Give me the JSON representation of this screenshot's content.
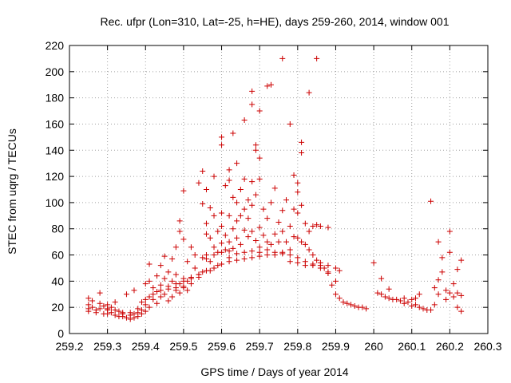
{
  "chart_data": {
    "type": "scatter",
    "title": "Rec. ufpr (Lon=310, Lat=-25, h=HE), days 259-260, 2014, window 001",
    "xlabel": "GPS time / Days of year 2014",
    "ylabel": "STEC from uqrg / TECUs",
    "xlim": [
      259.2,
      260.3
    ],
    "ylim": [
      0,
      220
    ],
    "x_ticks": [
      259.2,
      259.3,
      259.4,
      259.5,
      259.6,
      259.7,
      259.8,
      259.9,
      260,
      260.1,
      260.2,
      260.3
    ],
    "x_tick_labels": [
      "259.2",
      "259.3",
      "259.4",
      "259.5",
      "259.6",
      "259.7",
      "259.8",
      "259.9",
      "260",
      "260.1",
      "260.2",
      "260.3"
    ],
    "y_ticks": [
      0,
      20,
      40,
      60,
      80,
      100,
      120,
      140,
      160,
      180,
      200,
      220
    ],
    "y_tick_labels": [
      "0",
      "20",
      "40",
      "60",
      "80",
      "100",
      "120",
      "140",
      "160",
      "180",
      "200",
      "220"
    ],
    "grid": true,
    "marker": "+",
    "color": "#cc0000",
    "points": [
      [
        259.25,
        27
      ],
      [
        259.25,
        22
      ],
      [
        259.25,
        19
      ],
      [
        259.25,
        17
      ],
      [
        259.26,
        25
      ],
      [
        259.26,
        20
      ],
      [
        259.27,
        18
      ],
      [
        259.27,
        16
      ],
      [
        259.28,
        31
      ],
      [
        259.28,
        23
      ],
      [
        259.28,
        19
      ],
      [
        259.29,
        15
      ],
      [
        259.29,
        21
      ],
      [
        259.3,
        22
      ],
      [
        259.3,
        18
      ],
      [
        259.3,
        15
      ],
      [
        259.31,
        20
      ],
      [
        259.31,
        16
      ],
      [
        259.32,
        24
      ],
      [
        259.32,
        14
      ],
      [
        259.33,
        17
      ],
      [
        259.33,
        13
      ],
      [
        259.34,
        15
      ],
      [
        259.34,
        13
      ],
      [
        259.35,
        30
      ],
      [
        259.35,
        12
      ],
      [
        259.36,
        14
      ],
      [
        259.36,
        11
      ],
      [
        259.37,
        33
      ],
      [
        259.37,
        15
      ],
      [
        259.37,
        12
      ],
      [
        259.38,
        19
      ],
      [
        259.38,
        13
      ],
      [
        259.39,
        24
      ],
      [
        259.39,
        15
      ],
      [
        259.39,
        18
      ],
      [
        259.4,
        38
      ],
      [
        259.4,
        22
      ],
      [
        259.4,
        17
      ],
      [
        259.41,
        53
      ],
      [
        259.41,
        40
      ],
      [
        259.41,
        28
      ],
      [
        259.41,
        20
      ],
      [
        259.42,
        35
      ],
      [
        259.42,
        26
      ],
      [
        259.43,
        44
      ],
      [
        259.43,
        32
      ],
      [
        259.43,
        23
      ],
      [
        259.44,
        52
      ],
      [
        259.44,
        37
      ],
      [
        259.44,
        28
      ],
      [
        259.45,
        59
      ],
      [
        259.45,
        42
      ],
      [
        259.45,
        30
      ],
      [
        259.46,
        47
      ],
      [
        259.46,
        34
      ],
      [
        259.46,
        25
      ],
      [
        259.47,
        57
      ],
      [
        259.47,
        40
      ],
      [
        259.47,
        28
      ],
      [
        259.48,
        66
      ],
      [
        259.48,
        45
      ],
      [
        259.48,
        35
      ],
      [
        259.49,
        78
      ],
      [
        259.49,
        86
      ],
      [
        259.49,
        38
      ],
      [
        259.49,
        31
      ],
      [
        259.5,
        109
      ],
      [
        259.5,
        72
      ],
      [
        259.5,
        42
      ],
      [
        259.5,
        36
      ],
      [
        259.51,
        55
      ],
      [
        259.51,
        40
      ],
      [
        259.51,
        33
      ],
      [
        259.52,
        66
      ],
      [
        259.52,
        43
      ],
      [
        259.53,
        60
      ],
      [
        259.53,
        50
      ],
      [
        259.54,
        115
      ],
      [
        259.54,
        45
      ],
      [
        259.55,
        124
      ],
      [
        259.55,
        99
      ],
      [
        259.55,
        58
      ],
      [
        259.55,
        47
      ],
      [
        259.56,
        110
      ],
      [
        259.56,
        84
      ],
      [
        259.56,
        76
      ],
      [
        259.56,
        60
      ],
      [
        259.57,
        96
      ],
      [
        259.57,
        73
      ],
      [
        259.57,
        55
      ],
      [
        259.57,
        48
      ],
      [
        259.58,
        120
      ],
      [
        259.58,
        90
      ],
      [
        259.58,
        66
      ],
      [
        259.59,
        78
      ],
      [
        259.59,
        62
      ],
      [
        259.59,
        52
      ],
      [
        259.6,
        150
      ],
      [
        259.6,
        144
      ],
      [
        259.6,
        92
      ],
      [
        259.6,
        82
      ],
      [
        259.6,
        69
      ],
      [
        259.61,
        113
      ],
      [
        259.61,
        75
      ],
      [
        259.61,
        64
      ],
      [
        259.62,
        125
      ],
      [
        259.62,
        117
      ],
      [
        259.62,
        90
      ],
      [
        259.62,
        70
      ],
      [
        259.62,
        58
      ],
      [
        259.63,
        153
      ],
      [
        259.63,
        104
      ],
      [
        259.63,
        80
      ],
      [
        259.63,
        65
      ],
      [
        259.64,
        130
      ],
      [
        259.64,
        100
      ],
      [
        259.64,
        86
      ],
      [
        259.64,
        73
      ],
      [
        259.65,
        110
      ],
      [
        259.65,
        90
      ],
      [
        259.65,
        68
      ],
      [
        259.66,
        163
      ],
      [
        259.66,
        118
      ],
      [
        259.66,
        95
      ],
      [
        259.66,
        79
      ],
      [
        259.67,
        102
      ],
      [
        259.67,
        88
      ],
      [
        259.67,
        74
      ],
      [
        259.68,
        185
      ],
      [
        259.68,
        175
      ],
      [
        259.68,
        116
      ],
      [
        259.68,
        98
      ],
      [
        259.68,
        78
      ],
      [
        259.69,
        144
      ],
      [
        259.69,
        140
      ],
      [
        259.69,
        106
      ],
      [
        259.69,
        71
      ],
      [
        259.7,
        170
      ],
      [
        259.7,
        134
      ],
      [
        259.7,
        118
      ],
      [
        259.7,
        81
      ],
      [
        259.7,
        66
      ],
      [
        259.71,
        95
      ],
      [
        259.71,
        75
      ],
      [
        259.72,
        189
      ],
      [
        259.72,
        88
      ],
      [
        259.72,
        70
      ],
      [
        259.73,
        190
      ],
      [
        259.73,
        100
      ],
      [
        259.73,
        68
      ],
      [
        259.74,
        111
      ],
      [
        259.74,
        76
      ],
      [
        259.75,
        85
      ],
      [
        259.75,
        70
      ],
      [
        259.76,
        210
      ],
      [
        259.76,
        94
      ],
      [
        259.76,
        78
      ],
      [
        259.77,
        102
      ],
      [
        259.77,
        70
      ],
      [
        259.78,
        160
      ],
      [
        259.78,
        82
      ],
      [
        259.78,
        64
      ],
      [
        259.79,
        121
      ],
      [
        259.79,
        95
      ],
      [
        259.79,
        74
      ],
      [
        259.8,
        115
      ],
      [
        259.8,
        108
      ],
      [
        259.8,
        92
      ],
      [
        259.8,
        73
      ],
      [
        259.81,
        146
      ],
      [
        259.81,
        138
      ],
      [
        259.81,
        98
      ],
      [
        259.81,
        70
      ],
      [
        259.82,
        84
      ],
      [
        259.82,
        68
      ],
      [
        259.83,
        184
      ],
      [
        259.83,
        78
      ],
      [
        259.83,
        64
      ],
      [
        259.84,
        82
      ],
      [
        259.84,
        60
      ],
      [
        259.85,
        210
      ],
      [
        259.85,
        83
      ],
      [
        259.85,
        56
      ],
      [
        259.86,
        82
      ],
      [
        259.86,
        52
      ],
      [
        259.87,
        50
      ],
      [
        259.88,
        81
      ],
      [
        259.88,
        47
      ],
      [
        259.89,
        37
      ],
      [
        259.9,
        50
      ],
      [
        259.9,
        30
      ],
      [
        259.91,
        48
      ],
      [
        259.91,
        27
      ],
      [
        259.92,
        24
      ],
      [
        259.93,
        23
      ],
      [
        259.94,
        22
      ],
      [
        259.95,
        21
      ],
      [
        259.96,
        20
      ],
      [
        259.97,
        20
      ],
      [
        259.98,
        19
      ],
      [
        260.0,
        54
      ],
      [
        260.01,
        31
      ],
      [
        260.02,
        42
      ],
      [
        260.02,
        30
      ],
      [
        260.03,
        28
      ],
      [
        260.04,
        34
      ],
      [
        260.04,
        27
      ],
      [
        260.05,
        26
      ],
      [
        260.06,
        26
      ],
      [
        260.07,
        25
      ],
      [
        260.08,
        27
      ],
      [
        260.08,
        23
      ],
      [
        260.09,
        24
      ],
      [
        260.1,
        21
      ],
      [
        260.1,
        26
      ],
      [
        260.11,
        22
      ],
      [
        260.11,
        27
      ],
      [
        260.12,
        20
      ],
      [
        260.12,
        30
      ],
      [
        260.13,
        19
      ],
      [
        260.14,
        18
      ],
      [
        260.15,
        101
      ],
      [
        260.15,
        18
      ],
      [
        260.16,
        35
      ],
      [
        260.16,
        22
      ],
      [
        260.17,
        70
      ],
      [
        260.17,
        41
      ],
      [
        260.17,
        30
      ],
      [
        260.18,
        58
      ],
      [
        260.18,
        47
      ],
      [
        260.19,
        33
      ],
      [
        260.19,
        26
      ],
      [
        260.2,
        78
      ],
      [
        260.2,
        62
      ],
      [
        260.2,
        31
      ],
      [
        260.21,
        38
      ],
      [
        260.21,
        28
      ],
      [
        260.22,
        49
      ],
      [
        260.22,
        31
      ],
      [
        260.22,
        20
      ],
      [
        260.23,
        56
      ],
      [
        260.23,
        29
      ],
      [
        260.23,
        17
      ],
      [
        259.3,
        19
      ],
      [
        259.32,
        18
      ],
      [
        259.34,
        16
      ],
      [
        259.36,
        16
      ],
      [
        259.38,
        16
      ],
      [
        259.4,
        26
      ],
      [
        259.42,
        30
      ],
      [
        259.44,
        33
      ],
      [
        259.46,
        36
      ],
      [
        259.48,
        38
      ],
      [
        259.5,
        40
      ],
      [
        259.52,
        42
      ],
      [
        259.54,
        45
      ],
      [
        259.56,
        48
      ],
      [
        259.58,
        50
      ],
      [
        259.6,
        53
      ],
      [
        259.62,
        55
      ],
      [
        259.64,
        56
      ],
      [
        259.66,
        57
      ],
      [
        259.68,
        58
      ],
      [
        259.7,
        59
      ],
      [
        259.72,
        60
      ],
      [
        259.74,
        60
      ],
      [
        259.76,
        61
      ],
      [
        259.78,
        60
      ],
      [
        259.8,
        58
      ],
      [
        259.82,
        55
      ],
      [
        259.84,
        53
      ],
      [
        259.86,
        50
      ],
      [
        259.88,
        46
      ],
      [
        259.9,
        40
      ],
      [
        259.48,
        33
      ],
      [
        259.5,
        35
      ],
      [
        259.52,
        38
      ],
      [
        259.54,
        43
      ],
      [
        259.56,
        57
      ],
      [
        259.58,
        60
      ],
      [
        259.6,
        62
      ],
      [
        259.62,
        63
      ],
      [
        259.64,
        61
      ],
      [
        259.66,
        62
      ],
      [
        259.68,
        63
      ],
      [
        259.7,
        62
      ],
      [
        259.72,
        64
      ],
      [
        259.74,
        62
      ],
      [
        259.76,
        62
      ],
      [
        259.78,
        55
      ],
      [
        259.8,
        54
      ],
      [
        259.82,
        52
      ],
      [
        259.84,
        52
      ],
      [
        259.86,
        54
      ],
      [
        259.88,
        52
      ]
    ]
  }
}
